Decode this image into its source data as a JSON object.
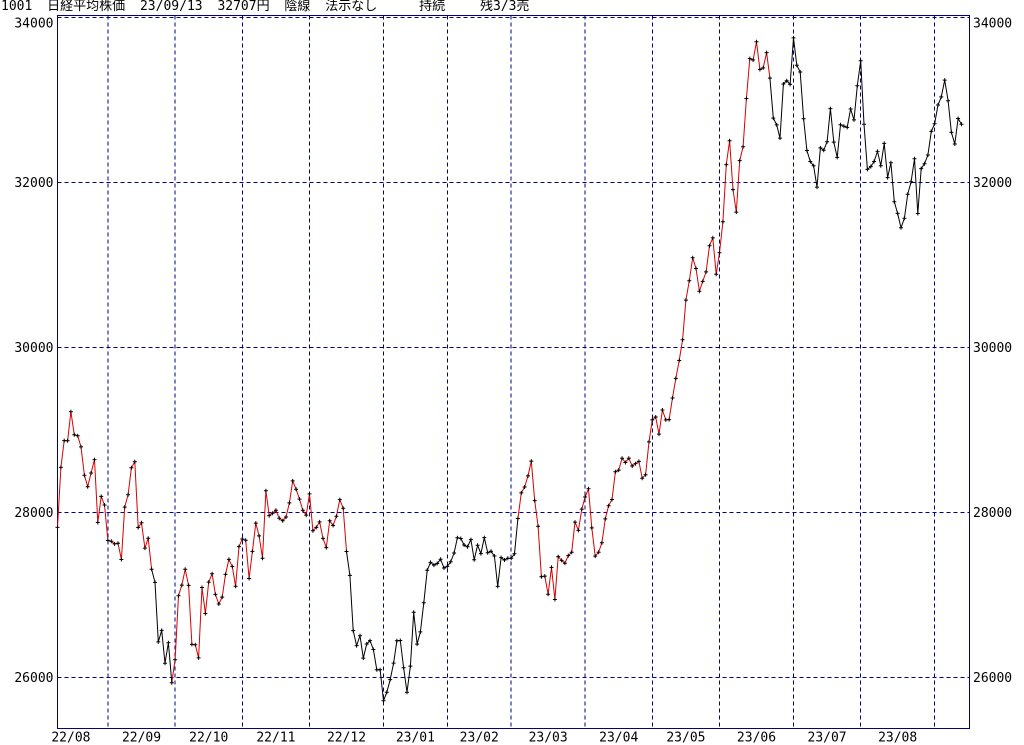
{
  "header": {
    "code": "1001",
    "name": "日経平均株価",
    "date": "23/09/13",
    "price": "32707円",
    "candle": "陰線",
    "note": "法示なし",
    "signal": "持続",
    "remaining": "残3/3売"
  },
  "colors": {
    "background": "#ffffff",
    "grid": "#000080",
    "frame": "#000080",
    "red_segment": "#d90000",
    "black_segment": "#000000",
    "marker": "#000000",
    "text": "#000000"
  },
  "chart_data": {
    "type": "line",
    "title": "1001 日経平均株価 23/09/13 32707円 陰線 法示なし 持続 残3/3売",
    "xlabel": "",
    "ylabel": "",
    "legend": "none",
    "grid": "dashed-navy",
    "ylim": [
      25380,
      34030
    ],
    "y_ticks": [
      34000,
      32000,
      30000,
      28000,
      26000
    ],
    "y_tick_labels": [
      "34000",
      "32000",
      "30000",
      "28000",
      "26000"
    ],
    "x_labels": [
      "22/08",
      "22/09",
      "22/10",
      "22/11",
      "22/12",
      "23/01",
      "23/02",
      "23/03",
      "23/04",
      "23/05",
      "23/06",
      "23/07",
      "23/08"
    ],
    "start_date": "22/08/10",
    "end_date": "23/09/13",
    "frequency": "daily-close",
    "month_start_indices": [
      15,
      35,
      55,
      75,
      97,
      116,
      135,
      157,
      177,
      197,
      219,
      239,
      261
    ],
    "pre_start_trading_days": 7,
    "segments": [
      {
        "to_index": 28,
        "color_key": "red"
      },
      {
        "to_index": 34,
        "color_key": "black"
      },
      {
        "to_index": 86,
        "color_key": "red"
      },
      {
        "to_index": 137,
        "color_key": "black"
      },
      {
        "to_index": 212,
        "color_key": "red"
      },
      {
        "to_index": 269,
        "color_key": "black"
      }
    ],
    "values": [
      27819,
      28547,
      28872,
      28869,
      29222,
      28942,
      28930,
      28795,
      28452,
      28313,
      28479,
      28641,
      27879,
      28195,
      28091,
      27661,
      27651,
      27620,
      27627,
      27430,
      28065,
      28214,
      28542,
      28614,
      27818,
      27875,
      27568,
      27688,
      27313,
      27153,
      26431,
      26571,
      26173,
      26422,
      25937,
      26216,
      26992,
      27120,
      27311,
      27116,
      26401,
      26397,
      26237,
      27091,
      26776,
      27156,
      27257,
      27007,
      26891,
      26975,
      27250,
      27432,
      27345,
      27105,
      27587,
      27679,
      27664,
      27200,
      27528,
      27872,
      27716,
      27446,
      28264,
      27963,
      27990,
      28028,
      27931,
      27900,
      27945,
      28116,
      28383,
      28283,
      28163,
      28028,
      27969,
      28226,
      27778,
      27820,
      27886,
      27686,
      27574,
      27901,
      27842,
      27954,
      28156,
      28051,
      27527,
      27237,
      26568,
      26387,
      26507,
      26235,
      26406,
      26447,
      26340,
      26093,
      26095,
      25717,
      25821,
      25974,
      26175,
      26446,
      26449,
      26119,
      25822,
      26138,
      26791,
      26405,
      26553,
      26906,
      27299,
      27395,
      27362,
      27382,
      27433,
      27327,
      27347,
      27402,
      27509,
      27693,
      27685,
      27606,
      27584,
      27671,
      27427,
      27602,
      27502,
      27696,
      27513,
      27531,
      27473,
      27104,
      27453,
      27424,
      27446,
      27445,
      27499,
      27927,
      28238,
      28309,
      28444,
      28623,
      28144,
      27833,
      27222,
      27229,
      27010,
      27334,
      26946,
      27466,
      27420,
      27385,
      27477,
      27518,
      27884,
      27783,
      28041,
      28188,
      28287,
      27813,
      27472,
      27518,
      27633,
      27923,
      28082,
      28157,
      28493,
      28514,
      28658,
      28606,
      28657,
      28564,
      28593,
      28620,
      28416,
      28458,
      28856,
      29123,
      29158,
      28950,
      29243,
      29122,
      29126,
      29388,
      29626,
      29843,
      30094,
      30574,
      30808,
      31087,
      30958,
      30683,
      30801,
      30916,
      31233,
      31328,
      30887,
      31148,
      31524,
      32217,
      32507,
      31914,
      31641,
      32265,
      32434,
      33018,
      33502,
      33485,
      33706,
      33370,
      33389,
      33575,
      33265,
      32781,
      32698,
      32538,
      33194,
      33234,
      33189,
      33753,
      33422,
      33339,
      32773,
      32388,
      32254,
      32203,
      31944,
      32419,
      32391,
      32493,
      32896,
      32490,
      32304,
      32700,
      32683,
      32668,
      32891,
      32759,
      33172,
      33476,
      32707,
      32159,
      32193,
      32254,
      32377,
      32204,
      32474,
      32059,
      32239,
      31766,
      31626,
      31451,
      31566,
      31857,
      32010,
      32287,
      31624,
      32169,
      32227,
      32333,
      32619,
      32711,
      32939,
      33037,
      33241,
      32991,
      32607,
      32467,
      32776,
      32707
    ]
  }
}
